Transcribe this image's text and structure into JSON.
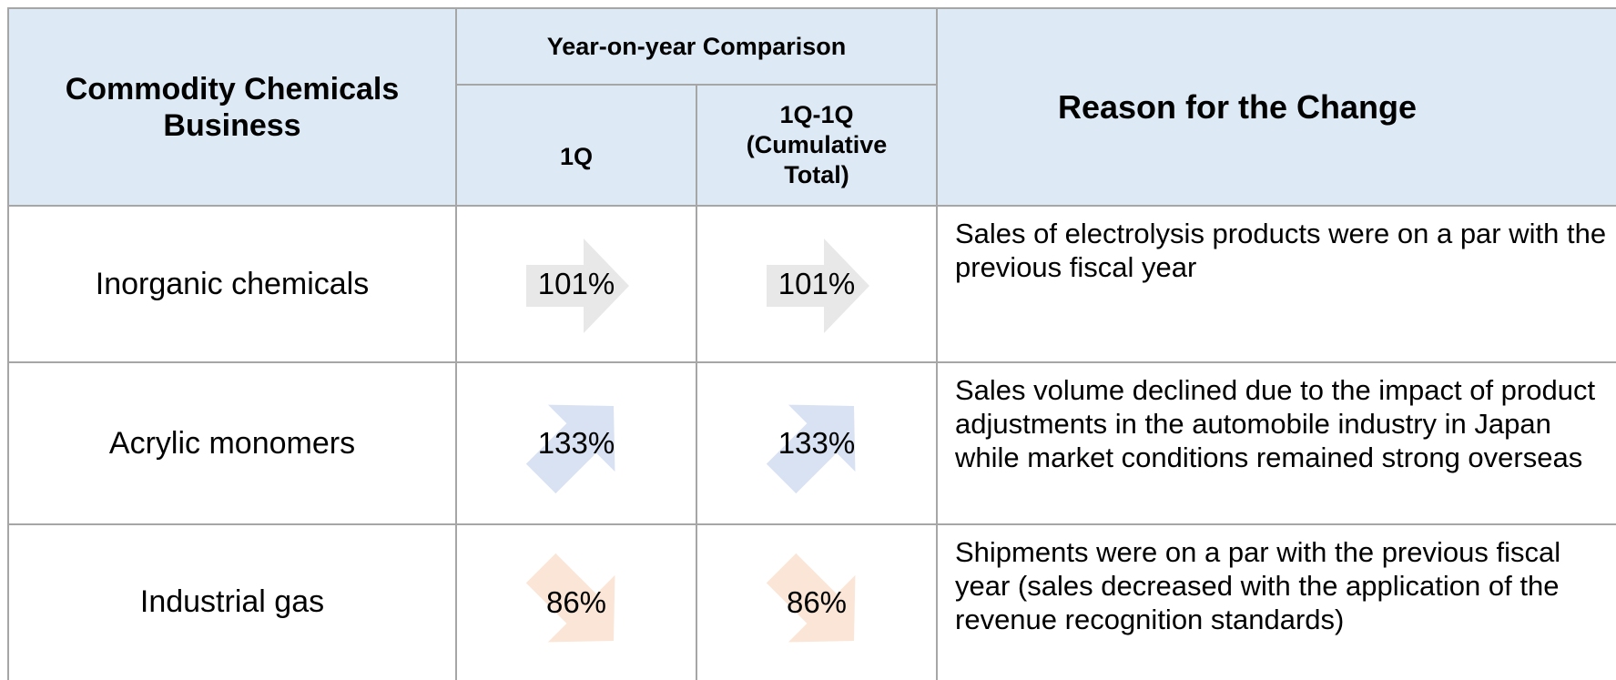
{
  "header": {
    "title": "Commodity Chemicals Business",
    "group": "Year-on-year Comparison",
    "col_1q": "1Q",
    "col_cum": "1Q-1Q (Cumulative Total)",
    "reason": "Reason for the Change"
  },
  "rows": [
    {
      "name": "Inorganic chemicals",
      "q1": "101%",
      "cum": "101%",
      "reason": "Sales of electrolysis products were on a par with the previous fiscal year"
    },
    {
      "name": "Acrylic monomers",
      "q1": "133%",
      "cum": "133%",
      "reason": "Sales volume declined due to the impact of product adjustments in the automobile industry in Japan while market conditions remained strong overseas"
    },
    {
      "name": "Industrial gas",
      "q1": "86%",
      "cum": "86%",
      "reason": "Shipments were on a par with the previous fiscal year (sales decreased with the application of the revenue recognition standards)"
    }
  ]
}
